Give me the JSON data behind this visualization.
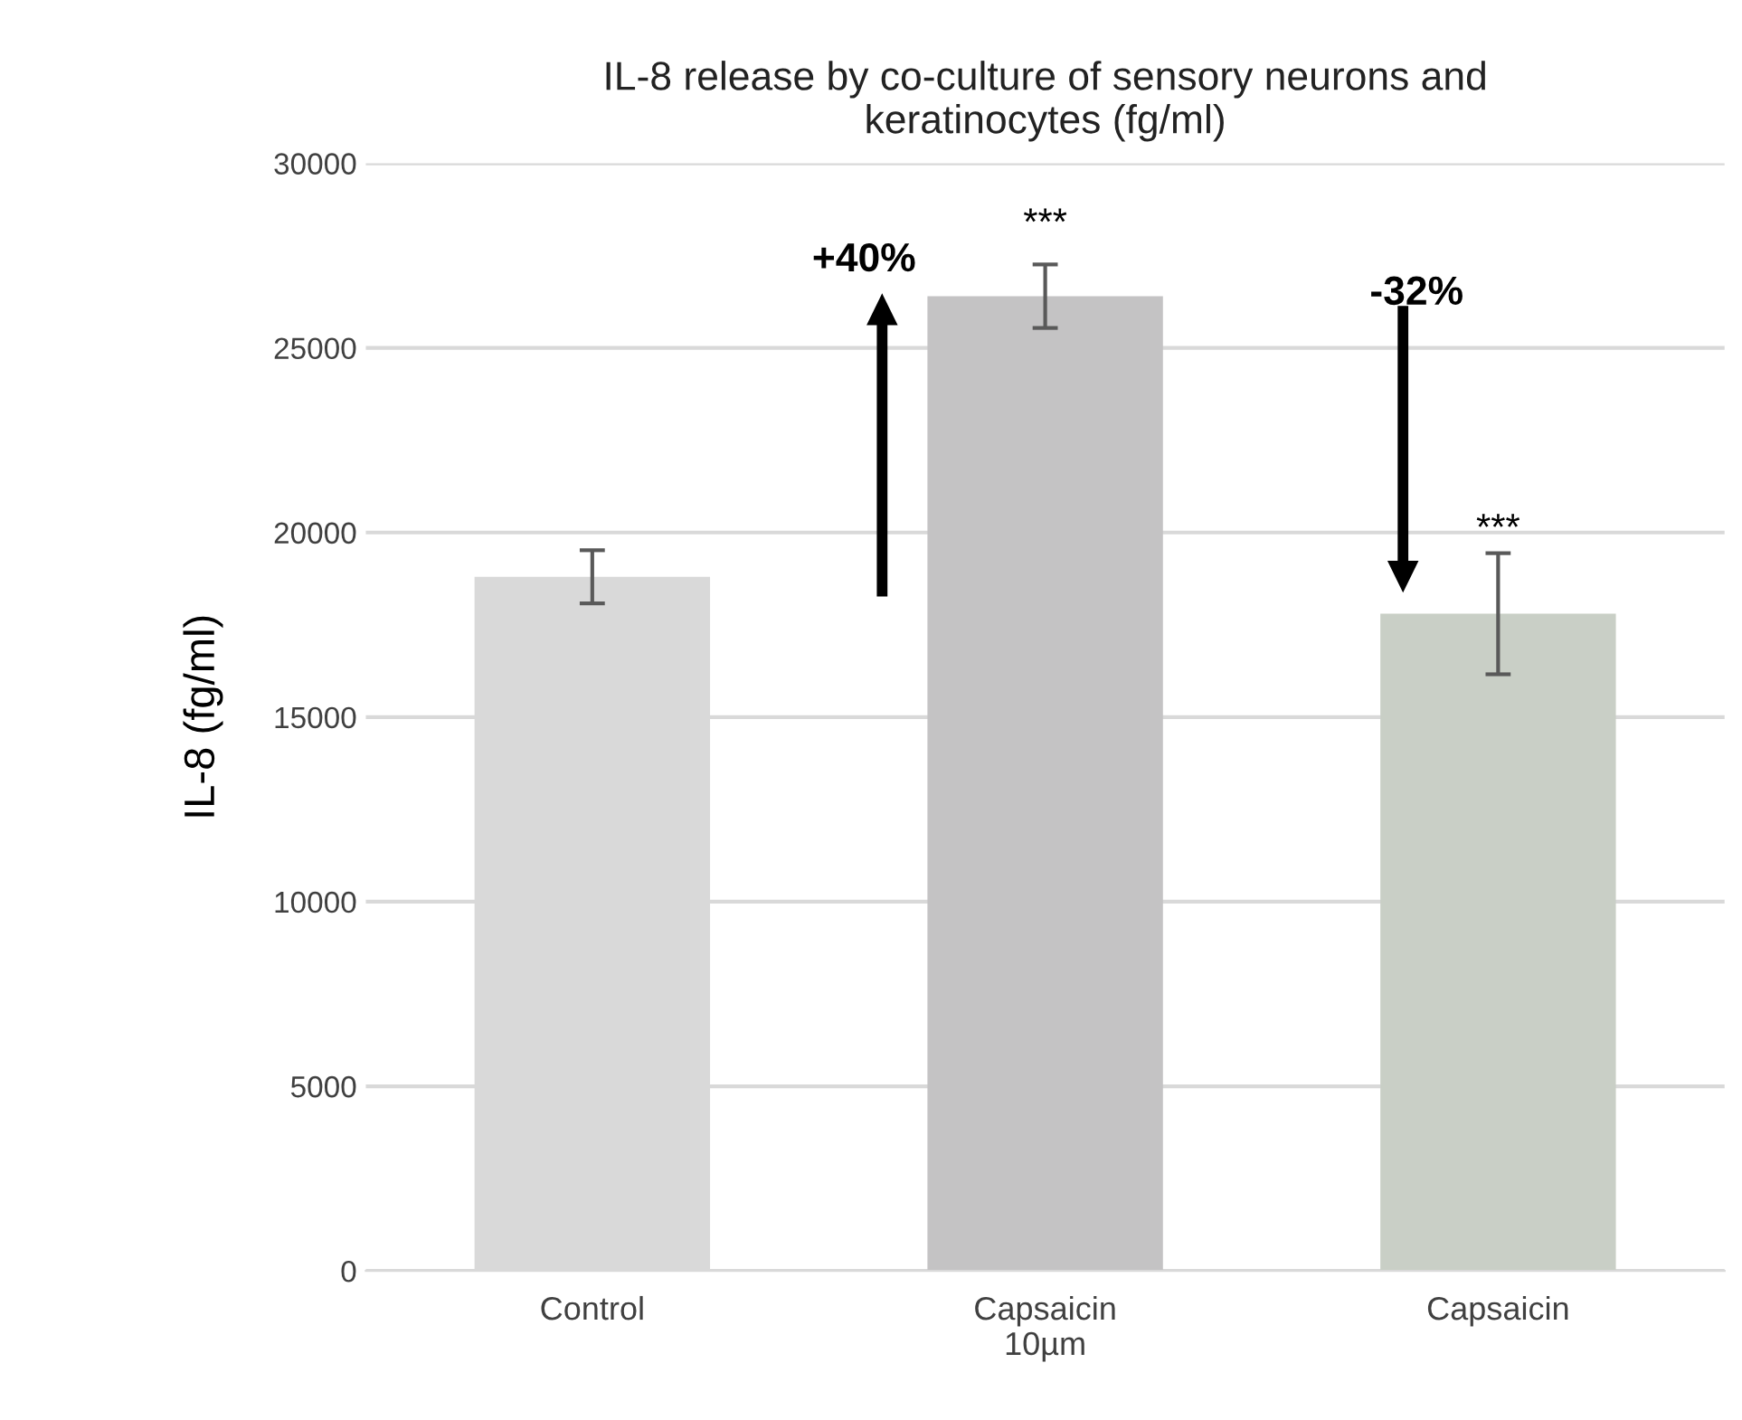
{
  "chart_data": {
    "type": "bar",
    "title": "IL-8 release by co-culture of sensory neurons and\nkeratinocytes (fg/ml)",
    "ylabel": "IL-8 (fg/ml)",
    "categories": [
      "Control",
      "Capsaicin\n10µm",
      "Capsaicin"
    ],
    "values": [
      18800,
      26400,
      17800
    ],
    "errors": [
      720,
      860,
      1640
    ],
    "colors": [
      "#d9d9d9",
      "#c4c3c4",
      "#c9cfc6"
    ],
    "ylim": [
      0,
      30000
    ],
    "yticks": [
      0,
      5000,
      10000,
      15000,
      20000,
      25000,
      30000
    ],
    "grid": "y",
    "annotations": [
      "+40%",
      "***",
      "-32%",
      "***"
    ]
  }
}
